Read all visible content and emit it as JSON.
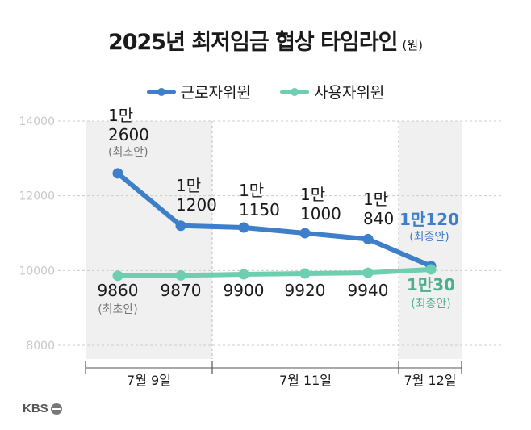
{
  "title": "2025년 최저임금 협상 타임라인",
  "unit": "(원)",
  "brand": "KBS",
  "colors": {
    "labor": "#3d7fc8",
    "management": "#6dcfb0",
    "plot_bg": "#f0f0f0",
    "axis_text": "#c8c8c8"
  },
  "chart_data": {
    "type": "line",
    "title": "2025년 최저임금 협상 타임라인",
    "ylabel": "(원)",
    "ylim": [
      8000,
      14000
    ],
    "yticks": [
      "8000",
      "10000",
      "12000",
      "14000"
    ],
    "grid": true,
    "legend_position": "top-center",
    "x_groups": [
      "7월 9일",
      "7월 11일",
      "7월 12일"
    ],
    "x": [
      1,
      2,
      3,
      4,
      5,
      6
    ],
    "series": [
      {
        "name": "근로자위원",
        "color": "#3d7fc8",
        "values": [
          12600,
          11200,
          11150,
          11000,
          10840,
          10120
        ],
        "labels": [
          [
            "1만",
            "2600",
            "(최초안)"
          ],
          [
            "1만",
            "1200"
          ],
          [
            "1만",
            "1150"
          ],
          [
            "1만",
            "1000"
          ],
          [
            "1만",
            "840"
          ],
          [
            "1만120",
            "(최종안)"
          ]
        ]
      },
      {
        "name": "사용자위원",
        "color": "#6dcfb0",
        "values": [
          9860,
          9870,
          9900,
          9920,
          9940,
          10030
        ],
        "labels": [
          [
            "9860",
            "(최초안)"
          ],
          [
            "9870"
          ],
          [
            "9900"
          ],
          [
            "9920"
          ],
          [
            "9940"
          ],
          [
            "1만30",
            "(최종안)"
          ]
        ]
      }
    ]
  }
}
